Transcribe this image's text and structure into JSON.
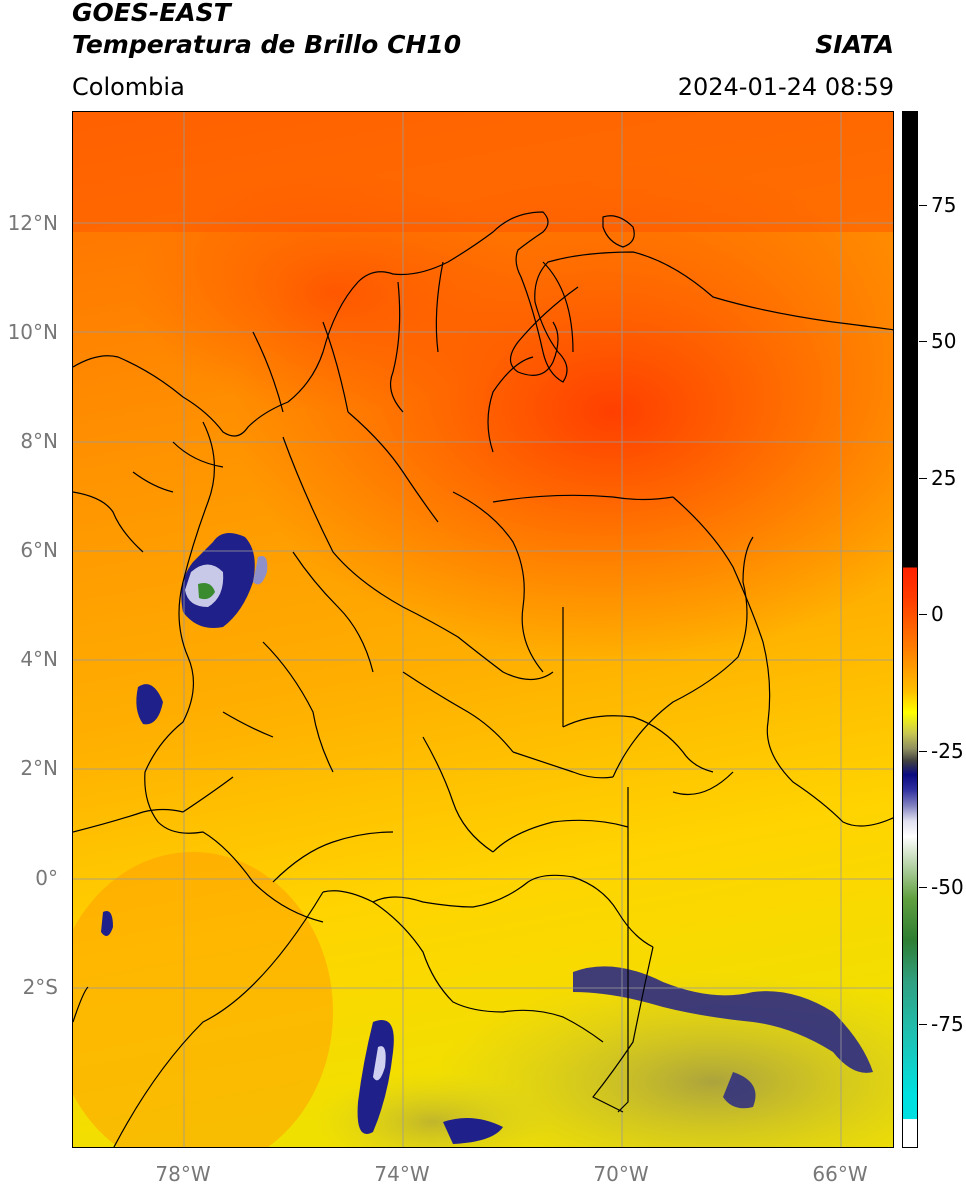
{
  "header": {
    "satellite": "GOES-EAST",
    "product": "Temperatura de Brillo CH10",
    "agency": "SIATA",
    "region": "Colombia",
    "timestamp": "2024-01-24 08:59"
  },
  "axes": {
    "lat_labels": [
      "12°N",
      "10°N",
      "8°N",
      "6°N",
      "4°N",
      "2°N",
      "0°",
      "2°S"
    ],
    "lon_labels": [
      "78°W",
      "74°W",
      "70°W",
      "66°W"
    ]
  },
  "colorbar": {
    "ticks": [
      "75",
      "50",
      "25",
      "0",
      "-25",
      "-50",
      "-75"
    ]
  },
  "colors": {
    "warm": "#ff4500",
    "mid": "#ffa000",
    "cool": "#ffff00",
    "cold": "#1a1a80",
    "grid": "#9a9a9a"
  }
}
